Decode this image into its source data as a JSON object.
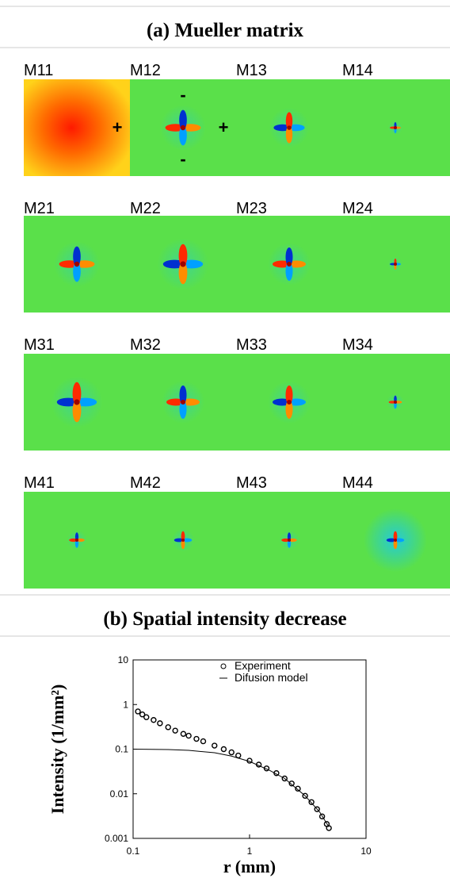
{
  "title_a": "(a)  Mueller matrix",
  "matrix_labels": [
    [
      "M11",
      "M12",
      "M13",
      "M14"
    ],
    [
      "M21",
      "M22",
      "M23",
      "M24"
    ],
    [
      "M31",
      "M32",
      "M33",
      "M34"
    ],
    [
      "M41",
      "M42",
      "M43",
      "M44"
    ]
  ],
  "annotations": [
    "-",
    "+",
    "+",
    "-"
  ],
  "title_b": "(b)  Spatial intensity decrease",
  "chart_data": {
    "type": "scatter",
    "xlabel": "r (mm)",
    "ylabel": "Intensity  (1/mm²)",
    "xlim": [
      0.1,
      10
    ],
    "ylim": [
      0.001,
      10
    ],
    "xticks": [
      0.1,
      1,
      10
    ],
    "yticks": [
      0.001,
      0.01,
      0.1,
      1,
      10
    ],
    "log_x": true,
    "log_y": true,
    "legend": "upper right",
    "series": [
      {
        "name": "Experiment",
        "marker": "circle",
        "color": "#000000",
        "x": [
          0.11,
          0.12,
          0.13,
          0.15,
          0.17,
          0.2,
          0.23,
          0.27,
          0.3,
          0.35,
          0.4,
          0.5,
          0.6,
          0.7,
          0.8,
          1,
          1.2,
          1.4,
          1.7,
          2,
          2.3,
          2.6,
          3,
          3.4,
          3.8,
          4.2,
          4.6,
          4.8
        ],
        "values": [
          0.7,
          0.6,
          0.52,
          0.45,
          0.38,
          0.31,
          0.26,
          0.22,
          0.2,
          0.17,
          0.15,
          0.12,
          0.1,
          0.085,
          0.072,
          0.055,
          0.045,
          0.037,
          0.029,
          0.022,
          0.017,
          0.013,
          0.009,
          0.0065,
          0.0045,
          0.0031,
          0.0021,
          0.0017
        ]
      },
      {
        "name": "Difusion model",
        "marker": "line",
        "color": "#000000",
        "x": [
          0.1,
          0.2,
          0.3,
          0.5,
          0.7,
          1,
          1.5,
          2,
          3,
          4,
          4.8
        ],
        "values": [
          0.1,
          0.098,
          0.094,
          0.083,
          0.07,
          0.053,
          0.033,
          0.022,
          0.009,
          0.0039,
          0.0018
        ]
      }
    ]
  }
}
